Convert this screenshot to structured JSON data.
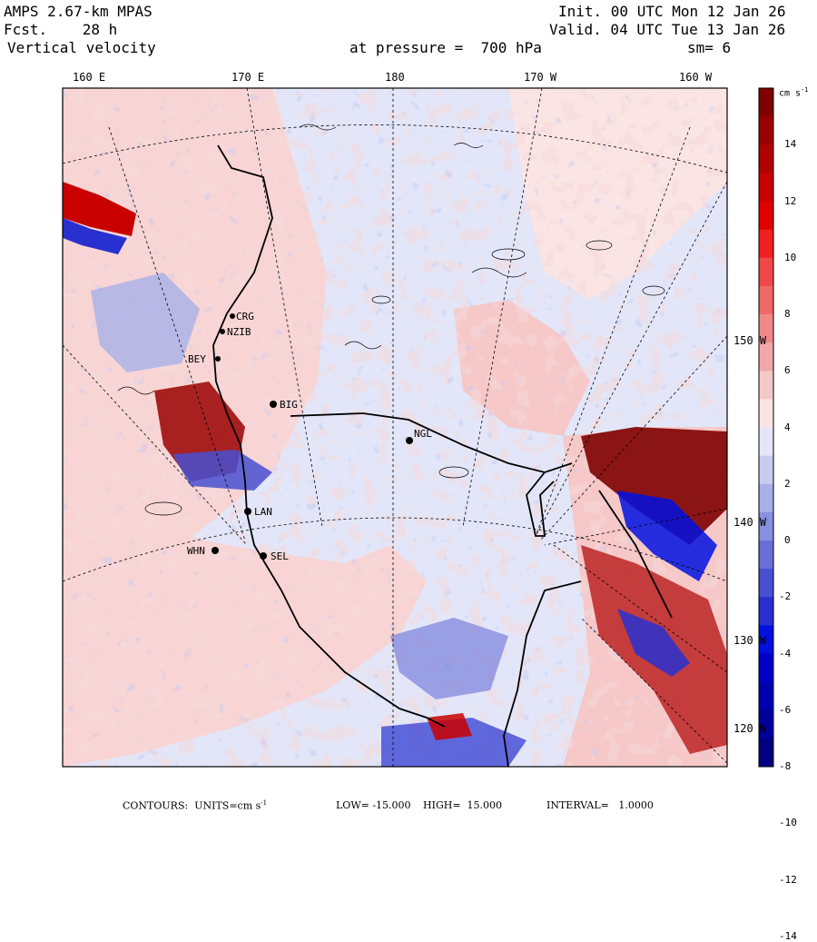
{
  "header": {
    "model": "AMPS 2.67-km MPAS",
    "fcst": "Fcst.    28 h",
    "field": "Vertical velocity",
    "init": "Init. 00 UTC Mon 12 Jan 26",
    "valid": "Valid. 04 UTC Tue 13 Jan 26",
    "pressure": "at pressure =  700 hPa",
    "smoothing": "sm= 6"
  },
  "longitude_labels": [
    "160 E",
    "170 E",
    "180",
    "170 W",
    "160 W"
  ],
  "latitude_labels": [
    "150 W",
    "140 W",
    "130 W",
    "120 W"
  ],
  "stations": [
    "CRG",
    "NZIB",
    "BEY",
    "BIG",
    "NGL",
    "LAN",
    "WHN",
    "SEL"
  ],
  "colorbar": {
    "units": "cm s",
    "units_exp": "-1",
    "ticks": [
      "14",
      "12",
      "10",
      "8",
      "6",
      "4",
      "2",
      "0",
      "-2",
      "-4",
      "-6",
      "-8",
      "-10",
      "-12",
      "-14"
    ],
    "colors": [
      "#800000",
      "#9a0000",
      "#b00000",
      "#c80000",
      "#e00000",
      "#f02020",
      "#f04848",
      "#f06868",
      "#f08888",
      "#f0a8a8",
      "#f6c8c8",
      "#fae4e4",
      "#e4e6f8",
      "#c8ccf0",
      "#a8b0e8",
      "#8890e0",
      "#6870d8",
      "#4850d0",
      "#2830d0",
      "#0010e0",
      "#0000c8",
      "#0000b0",
      "#00009a",
      "#000080"
    ]
  },
  "footer": {
    "contours": "CONTOURS:  UNITS=cm s",
    "units_exp": "-1",
    "low": "LOW= -15.000",
    "high": "HIGH=  15.000",
    "interval": "INTERVAL=   1.0000"
  },
  "colors": {
    "positive_light": "#f8d4d4",
    "negative_light": "#e2e6f8",
    "coast": "#000000"
  }
}
